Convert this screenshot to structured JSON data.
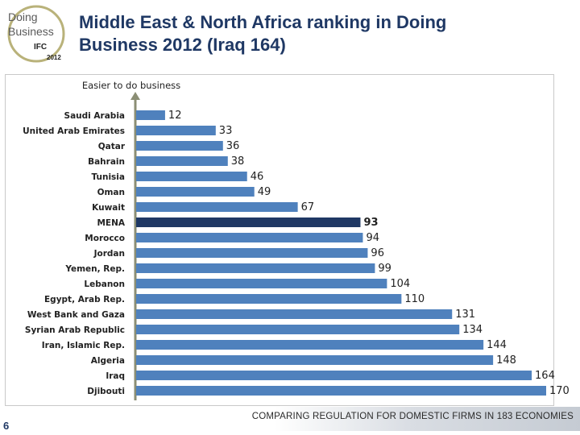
{
  "logo": {
    "line1": "Doing",
    "line2": "Business",
    "org": "IFC",
    "year": "2012"
  },
  "title_line1": "Middle East & North Africa ranking in Doing",
  "title_line2": "Business 2012 (Iraq 164)",
  "page_number": "6",
  "footer": "COMPARING REGULATION FOR DOMESTIC FIRMS IN 183 ECONOMIES",
  "colors": {
    "bar": "#4f81bd",
    "highlight": "#1f3864",
    "arrow": "#8b8e74",
    "title": "#1f3864"
  },
  "chart_data": {
    "type": "bar",
    "orientation": "horizontal",
    "annotation": "Easier to do business",
    "categories": [
      "Saudi Arabia",
      "United Arab Emirates",
      "Qatar",
      "Bahrain",
      "Tunisia",
      "Oman",
      "Kuwait",
      "MENA",
      "Morocco",
      "Jordan",
      "Yemen, Rep.",
      "Lebanon",
      "Egypt, Arab Rep.",
      "West Bank and Gaza",
      "Syrian Arab Republic",
      "Iran, Islamic Rep.",
      "Algeria",
      "Iraq",
      "Djibouti"
    ],
    "values": [
      12,
      33,
      36,
      38,
      46,
      49,
      67,
      93,
      94,
      96,
      99,
      104,
      110,
      131,
      134,
      144,
      148,
      164,
      170
    ],
    "highlight": "MENA",
    "xlim": [
      0,
      170
    ],
    "grid": false,
    "legend": "none"
  }
}
